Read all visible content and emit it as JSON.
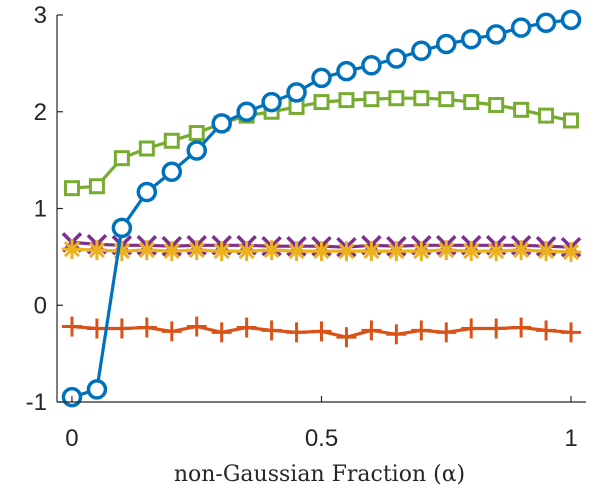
{
  "chart_data": {
    "type": "line",
    "title": "",
    "xlabel": "non-Gaussian Fraction (α)",
    "ylabel": "",
    "xlim": [
      -0.03,
      1.03
    ],
    "ylim": [
      -1,
      3
    ],
    "xticks": [
      0,
      0.5,
      1
    ],
    "xtick_labels": [
      "0",
      "0.5",
      "1"
    ],
    "yticks": [
      -1,
      0,
      1,
      2,
      3
    ],
    "ytick_labels": [
      "-1",
      "0",
      "1",
      "2",
      "3"
    ],
    "grid": false,
    "legend": "none",
    "x": [
      0,
      0.05,
      0.1,
      0.15,
      0.2,
      0.25,
      0.3,
      0.35,
      0.4,
      0.45,
      0.5,
      0.55,
      0.6,
      0.65,
      0.7,
      0.75,
      0.8,
      0.85,
      0.9,
      0.95,
      1.0
    ],
    "series": [
      {
        "marker": "circle",
        "color": "#0072BD",
        "values": [
          -0.95,
          -0.87,
          0.8,
          1.17,
          1.38,
          1.6,
          1.88,
          2.0,
          2.1,
          2.2,
          2.35,
          2.42,
          2.48,
          2.55,
          2.63,
          2.7,
          2.75,
          2.8,
          2.87,
          2.92,
          2.95
        ]
      },
      {
        "marker": "plus",
        "color": "#D95319",
        "values": [
          -0.22,
          -0.24,
          -0.24,
          -0.23,
          -0.27,
          -0.22,
          -0.28,
          -0.23,
          -0.26,
          -0.28,
          -0.27,
          -0.33,
          -0.26,
          -0.3,
          -0.26,
          -0.28,
          -0.24,
          -0.24,
          -0.23,
          -0.26,
          -0.28
        ]
      },
      {
        "marker": "asterisk",
        "color": "#EDB120",
        "values": [
          0.58,
          0.57,
          0.56,
          0.57,
          0.56,
          0.57,
          0.56,
          0.56,
          0.57,
          0.56,
          0.56,
          0.56,
          0.56,
          0.56,
          0.56,
          0.57,
          0.56,
          0.56,
          0.57,
          0.56,
          0.55
        ]
      },
      {
        "marker": "x",
        "color": "#7E2F8E",
        "values": [
          0.65,
          0.63,
          0.62,
          0.62,
          0.61,
          0.62,
          0.62,
          0.62,
          0.61,
          0.61,
          0.61,
          0.6,
          0.62,
          0.61,
          0.62,
          0.62,
          0.62,
          0.62,
          0.62,
          0.61,
          0.6
        ]
      },
      {
        "marker": "square",
        "color": "#77AC30",
        "values": [
          1.21,
          1.23,
          1.52,
          1.62,
          1.7,
          1.78,
          1.88,
          1.96,
          2.0,
          2.05,
          2.1,
          2.12,
          2.13,
          2.14,
          2.14,
          2.13,
          2.1,
          2.07,
          2.02,
          1.96,
          1.91
        ]
      }
    ]
  }
}
